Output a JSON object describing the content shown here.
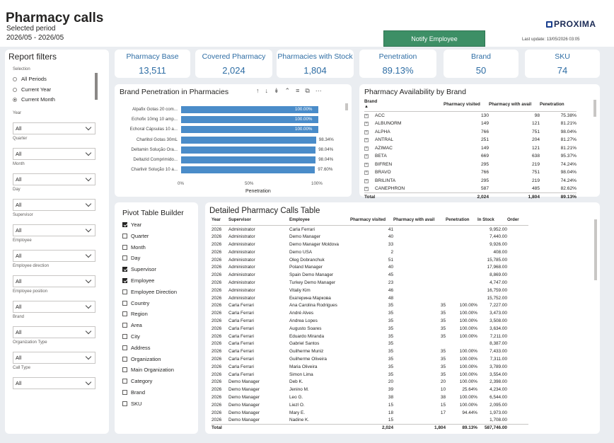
{
  "header": {
    "title": "Pharmacy calls",
    "selected_period_label": "Selected period",
    "period": "2026/05 - 2026/05",
    "notify_button": "Notify Employee",
    "logo_text": "PROXIMA",
    "last_update": "Last update: 13/05/2026 03:05"
  },
  "filters": {
    "title": "Report filters",
    "selection_label": "Selection",
    "selection_options": [
      {
        "label": "All Periods",
        "selected": false
      },
      {
        "label": "Current Year",
        "selected": false
      },
      {
        "label": "Current Month",
        "selected": true
      }
    ],
    "fields": [
      {
        "label": "Year",
        "value": "All"
      },
      {
        "label": "Quarter",
        "value": "All"
      },
      {
        "label": "Month",
        "value": "All"
      },
      {
        "label": "Day",
        "value": "All"
      },
      {
        "label": "Supervisor",
        "value": "All"
      },
      {
        "label": "Employee",
        "value": "All"
      },
      {
        "label": "Employee direction",
        "value": "All"
      },
      {
        "label": "Employee position",
        "value": "All"
      },
      {
        "label": "Brand",
        "value": "All"
      },
      {
        "label": "Organization Type",
        "value": "All"
      },
      {
        "label": "Call Type",
        "value": "All"
      }
    ]
  },
  "kpis": [
    {
      "label": "Pharmacy Base",
      "value": "13,511"
    },
    {
      "label": "Covered Pharmacy",
      "value": "2,024"
    },
    {
      "label": "Pharmacies with Stock",
      "value": "1,804"
    },
    {
      "label": "Penetration",
      "value": "89.13%"
    },
    {
      "label": "Brand",
      "value": "50"
    },
    {
      "label": "SKU",
      "value": "74"
    }
  ],
  "brand_penetration": {
    "title": "Brand Penetration in Pharmacies",
    "toolbar_icons": [
      "arrow-up-icon",
      "arrow-down-icon",
      "double-arrow-down-icon",
      "drill-up-icon",
      "filter-icon",
      "focus-mode-icon",
      "more-options-icon"
    ],
    "chart_data": {
      "type": "bar",
      "orientation": "horizontal",
      "categories": [
        "Alpafix Gotas 20 com...",
        "Echofix 10mg 10 amp...",
        "Echoral Cápsulas 10 a...",
        "Charlitol Gotas 30mL",
        "Deltamin Solução Ora...",
        "Deltazid Comprimido...",
        "Charlivir Solução 10 a..."
      ],
      "values": [
        100.0,
        100.0,
        100.0,
        98.34,
        98.04,
        98.04,
        97.6
      ],
      "value_labels": [
        "100.00%",
        "100.00%",
        "100.00%",
        "98.34%",
        "98.04%",
        "98.04%",
        "97.60%"
      ],
      "xlabel": "Penetration",
      "x_ticks": [
        "0%",
        "50%",
        "100%"
      ],
      "xlim": [
        0,
        100
      ],
      "color": "#4a8cc9"
    }
  },
  "availability": {
    "title": "Pharmacy Availability by Brand",
    "columns": [
      "Brand",
      "Pharmacy visited",
      "Pharmacy with avail",
      "Penetration"
    ],
    "rows": [
      [
        "ACC",
        "130",
        "98",
        "75.38%"
      ],
      [
        "ALBUNORM",
        "149",
        "121",
        "81.21%"
      ],
      [
        "ALPHA",
        "766",
        "751",
        "98.04%"
      ],
      [
        "ANTRAL",
        "251",
        "204",
        "81.27%"
      ],
      [
        "AZIMAC",
        "149",
        "121",
        "81.21%"
      ],
      [
        "BETA",
        "669",
        "638",
        "95.37%"
      ],
      [
        "BIFREN",
        "295",
        "219",
        "74.24%"
      ],
      [
        "BRAVO",
        "766",
        "751",
        "98.04%"
      ],
      [
        "BRILINTA",
        "295",
        "219",
        "74.24%"
      ],
      [
        "CANEPHRON",
        "587",
        "485",
        "82.62%"
      ]
    ],
    "total": [
      "Total",
      "2,024",
      "1,804",
      "89.13%"
    ]
  },
  "pivot": {
    "title": "Pivot Table Builder",
    "items": [
      {
        "label": "Year",
        "checked": true
      },
      {
        "label": "Quarter",
        "checked": false
      },
      {
        "label": "Month",
        "checked": false
      },
      {
        "label": "Day",
        "checked": false
      },
      {
        "label": "Supervisor",
        "checked": true
      },
      {
        "label": "Employee",
        "checked": true
      },
      {
        "label": "Employee Direction",
        "checked": false
      },
      {
        "label": "Country",
        "checked": false
      },
      {
        "label": "Region",
        "checked": false
      },
      {
        "label": "Area",
        "checked": false
      },
      {
        "label": "City",
        "checked": false
      },
      {
        "label": "Address",
        "checked": false
      },
      {
        "label": "Organization",
        "checked": false
      },
      {
        "label": "Main Organization",
        "checked": false
      },
      {
        "label": "Category",
        "checked": false
      },
      {
        "label": "Brand",
        "checked": false
      },
      {
        "label": "SKU",
        "checked": false
      }
    ]
  },
  "detailed": {
    "title": "Detailed Pharmacy Calls Table",
    "columns": [
      "Year",
      "Supervisor",
      "Employee",
      "Pharmacy visited",
      "Pharmacy with avail",
      "Penetration",
      "In Stock",
      "Order"
    ],
    "rows": [
      [
        "2026",
        "Administrator",
        "Carla Ferrari",
        "41",
        "",
        "",
        "9,952.00",
        ""
      ],
      [
        "2026",
        "Administrator",
        "Demo Manager",
        "40",
        "",
        "",
        "7,440.00",
        ""
      ],
      [
        "2026",
        "Administrator",
        "Demo Manager Moldova",
        "33",
        "",
        "",
        "9,926.00",
        ""
      ],
      [
        "2026",
        "Administrator",
        "Demo USA",
        "2",
        "",
        "",
        "408.00",
        ""
      ],
      [
        "2026",
        "Administrator",
        "Oleg Dobranchuk",
        "51",
        "",
        "",
        "15,785.00",
        ""
      ],
      [
        "2026",
        "Administrator",
        "Poland Manager",
        "40",
        "",
        "",
        "17,968.00",
        ""
      ],
      [
        "2026",
        "Administrator",
        "Spain Demo Manager",
        "45",
        "",
        "",
        "8,869.00",
        ""
      ],
      [
        "2026",
        "Administrator",
        "Turkey Demo Manager",
        "23",
        "",
        "",
        "4,747.00",
        ""
      ],
      [
        "2026",
        "Administrator",
        "Vitaliy Kim",
        "46",
        "",
        "",
        "16,759.00",
        ""
      ],
      [
        "2026",
        "Administrator",
        "Екатерина Маркова",
        "48",
        "",
        "",
        "15,752.00",
        ""
      ],
      [
        "2026",
        "Carla Ferrari",
        "Ana Carolina Rodrigues",
        "35",
        "35",
        "100.00%",
        "7,227.00",
        ""
      ],
      [
        "2026",
        "Carla Ferrari",
        "André Alves",
        "35",
        "35",
        "100.00%",
        "3,473.00",
        ""
      ],
      [
        "2026",
        "Carla Ferrari",
        "Andrea Lopes",
        "35",
        "35",
        "100.00%",
        "3,508.00",
        ""
      ],
      [
        "2026",
        "Carla Ferrari",
        "Augusto Soares",
        "35",
        "35",
        "100.00%",
        "3,634.00",
        ""
      ],
      [
        "2026",
        "Carla Ferrari",
        "Eduardo Miranda",
        "35",
        "35",
        "100.00%",
        "7,211.00",
        ""
      ],
      [
        "2026",
        "Carla Ferrari",
        "Gabriel Santos",
        "35",
        "",
        "",
        "8,387.00",
        ""
      ],
      [
        "2026",
        "Carla Ferrari",
        "Guilherme Muniz",
        "35",
        "35",
        "100.00%",
        "7,433.00",
        ""
      ],
      [
        "2026",
        "Carla Ferrari",
        "Guilherme Oliveira",
        "35",
        "35",
        "100.00%",
        "7,311.00",
        ""
      ],
      [
        "2026",
        "Carla Ferrari",
        "Maria Oliveira",
        "35",
        "35",
        "100.00%",
        "3,789.00",
        ""
      ],
      [
        "2026",
        "Carla Ferrari",
        "Simon Lima",
        "35",
        "35",
        "100.00%",
        "3,554.00",
        ""
      ],
      [
        "2026",
        "Demo Manager",
        "Deb K.",
        "20",
        "20",
        "100.00%",
        "2,398.00",
        ""
      ],
      [
        "2026",
        "Demo Manager",
        "Jenino M.",
        "39",
        "10",
        "25.64%",
        "4,234.00",
        ""
      ],
      [
        "2026",
        "Demo Manager",
        "Leo G.",
        "38",
        "38",
        "100.00%",
        "6,544.00",
        ""
      ],
      [
        "2026",
        "Demo Manager",
        "Liezl O.",
        "15",
        "15",
        "100.00%",
        "2,095.00",
        ""
      ],
      [
        "2026",
        "Demo Manager",
        "Mary E.",
        "18",
        "17",
        "94.44%",
        "1,973.00",
        ""
      ],
      [
        "2026",
        "Demo Manager",
        "Nadine K.",
        "15",
        "",
        "",
        "1,708.00",
        ""
      ]
    ],
    "total": [
      "Total",
      "",
      "",
      "2,024",
      "1,804",
      "89.13%",
      "587,746.00",
      ""
    ]
  }
}
